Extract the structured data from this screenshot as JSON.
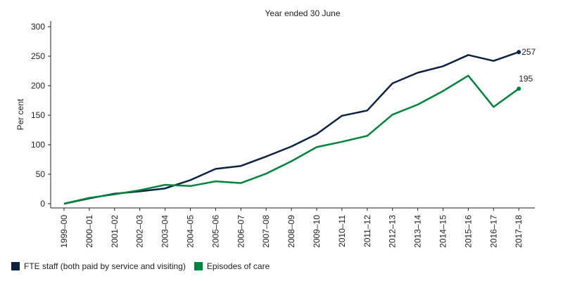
{
  "chart_data": {
    "type": "line",
    "title": "Year ended 30 June",
    "xlabel": "",
    "ylabel": "Per cent",
    "ylim": [
      0,
      300
    ],
    "yticks": [
      0,
      50,
      100,
      150,
      200,
      250,
      300
    ],
    "grid": false,
    "legend_position": "bottom-left",
    "categories": [
      "1999–00",
      "2000–01",
      "2001–02",
      "2002–03",
      "2003–04",
      "2004–05",
      "2005–06",
      "2006–07",
      "2007–08",
      "2008–09",
      "2009–10",
      "2010–11",
      "2011–12",
      "2012–13",
      "2013–14",
      "2014–15",
      "2015–16",
      "2016–17",
      "2017–18"
    ],
    "series": [
      {
        "name": "FTE staff (both paid by service and visiting)",
        "color": "#0c2340",
        "values": [
          0,
          9,
          17,
          21,
          26,
          40,
          59,
          64,
          80,
          97,
          118,
          149,
          158,
          204,
          222,
          233,
          252,
          242,
          257
        ],
        "end_label": "257"
      },
      {
        "name": "Episodes of care",
        "color": "#00843d",
        "values": [
          0,
          10,
          16,
          23,
          32,
          30,
          38,
          35,
          51,
          72,
          96,
          105,
          115,
          151,
          168,
          191,
          217,
          164,
          195
        ],
        "end_label": "195"
      }
    ]
  }
}
